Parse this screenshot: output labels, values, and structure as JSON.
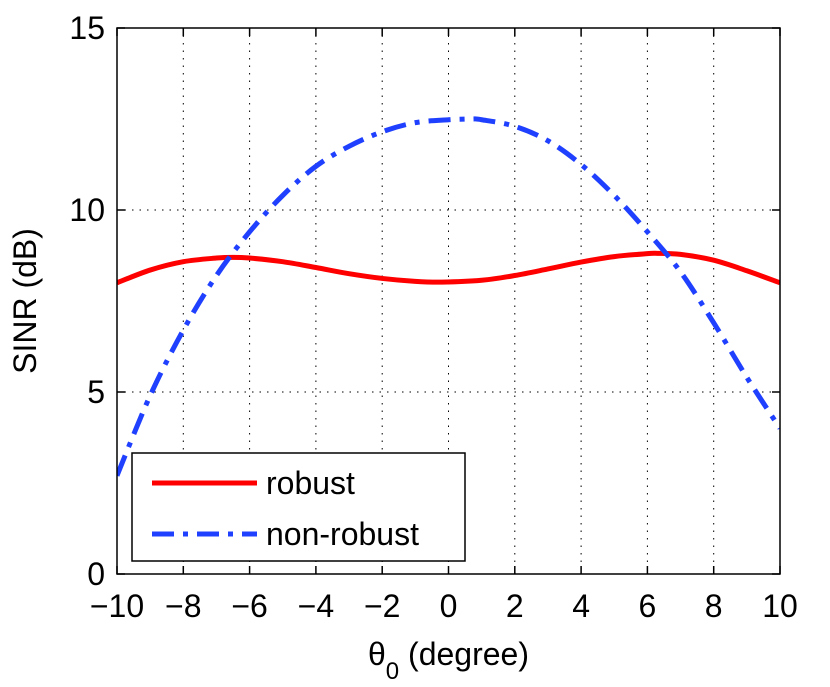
{
  "chart_data": {
    "type": "line",
    "title": "",
    "xlabel": {
      "symbol": "θ",
      "subscript": "0",
      "suffix": " (degree)"
    },
    "ylabel": "SINR (dB)",
    "xlim": [
      -10,
      10
    ],
    "ylim": [
      0,
      15
    ],
    "xticks": [
      -10,
      -8,
      -6,
      -4,
      -2,
      0,
      2,
      4,
      6,
      8,
      10
    ],
    "xtick_labels": [
      "−10",
      "−8",
      "−6",
      "−4",
      "−2",
      "0",
      "2",
      "4",
      "6",
      "8",
      "10"
    ],
    "yticks": [
      0,
      5,
      10,
      15
    ],
    "ytick_labels": [
      "0",
      "5",
      "10",
      "15"
    ],
    "grid": true,
    "legend_position": "bottom-left",
    "series": [
      {
        "name": "robust",
        "color": "#ff0000",
        "style": "solid",
        "x": [
          -10,
          -9,
          -8,
          -7,
          -6.5,
          -6,
          -5,
          -4,
          -3,
          -2,
          -1,
          -0.2,
          1,
          2,
          3,
          4,
          5,
          6,
          6.3,
          7,
          8,
          9,
          10
        ],
        "y": [
          8.0,
          8.35,
          8.58,
          8.68,
          8.7,
          8.68,
          8.58,
          8.42,
          8.25,
          8.12,
          8.04,
          8.02,
          8.07,
          8.2,
          8.38,
          8.57,
          8.72,
          8.8,
          8.81,
          8.78,
          8.62,
          8.33,
          8.0
        ]
      },
      {
        "name": "non-robust",
        "color": "#2040ff",
        "style": "dash-dot",
        "x": [
          -10,
          -9,
          -8,
          -7,
          -6,
          -5,
          -4,
          -3,
          -2,
          -1,
          0,
          0.7,
          1,
          2,
          3,
          4,
          5,
          6,
          7,
          8,
          9,
          10
        ],
        "y": [
          2.7,
          4.9,
          6.7,
          8.2,
          9.4,
          10.4,
          11.2,
          11.75,
          12.15,
          12.4,
          12.48,
          12.5,
          12.48,
          12.3,
          11.9,
          11.25,
          10.4,
          9.4,
          8.3,
          6.9,
          5.4,
          4.0
        ]
      }
    ]
  }
}
